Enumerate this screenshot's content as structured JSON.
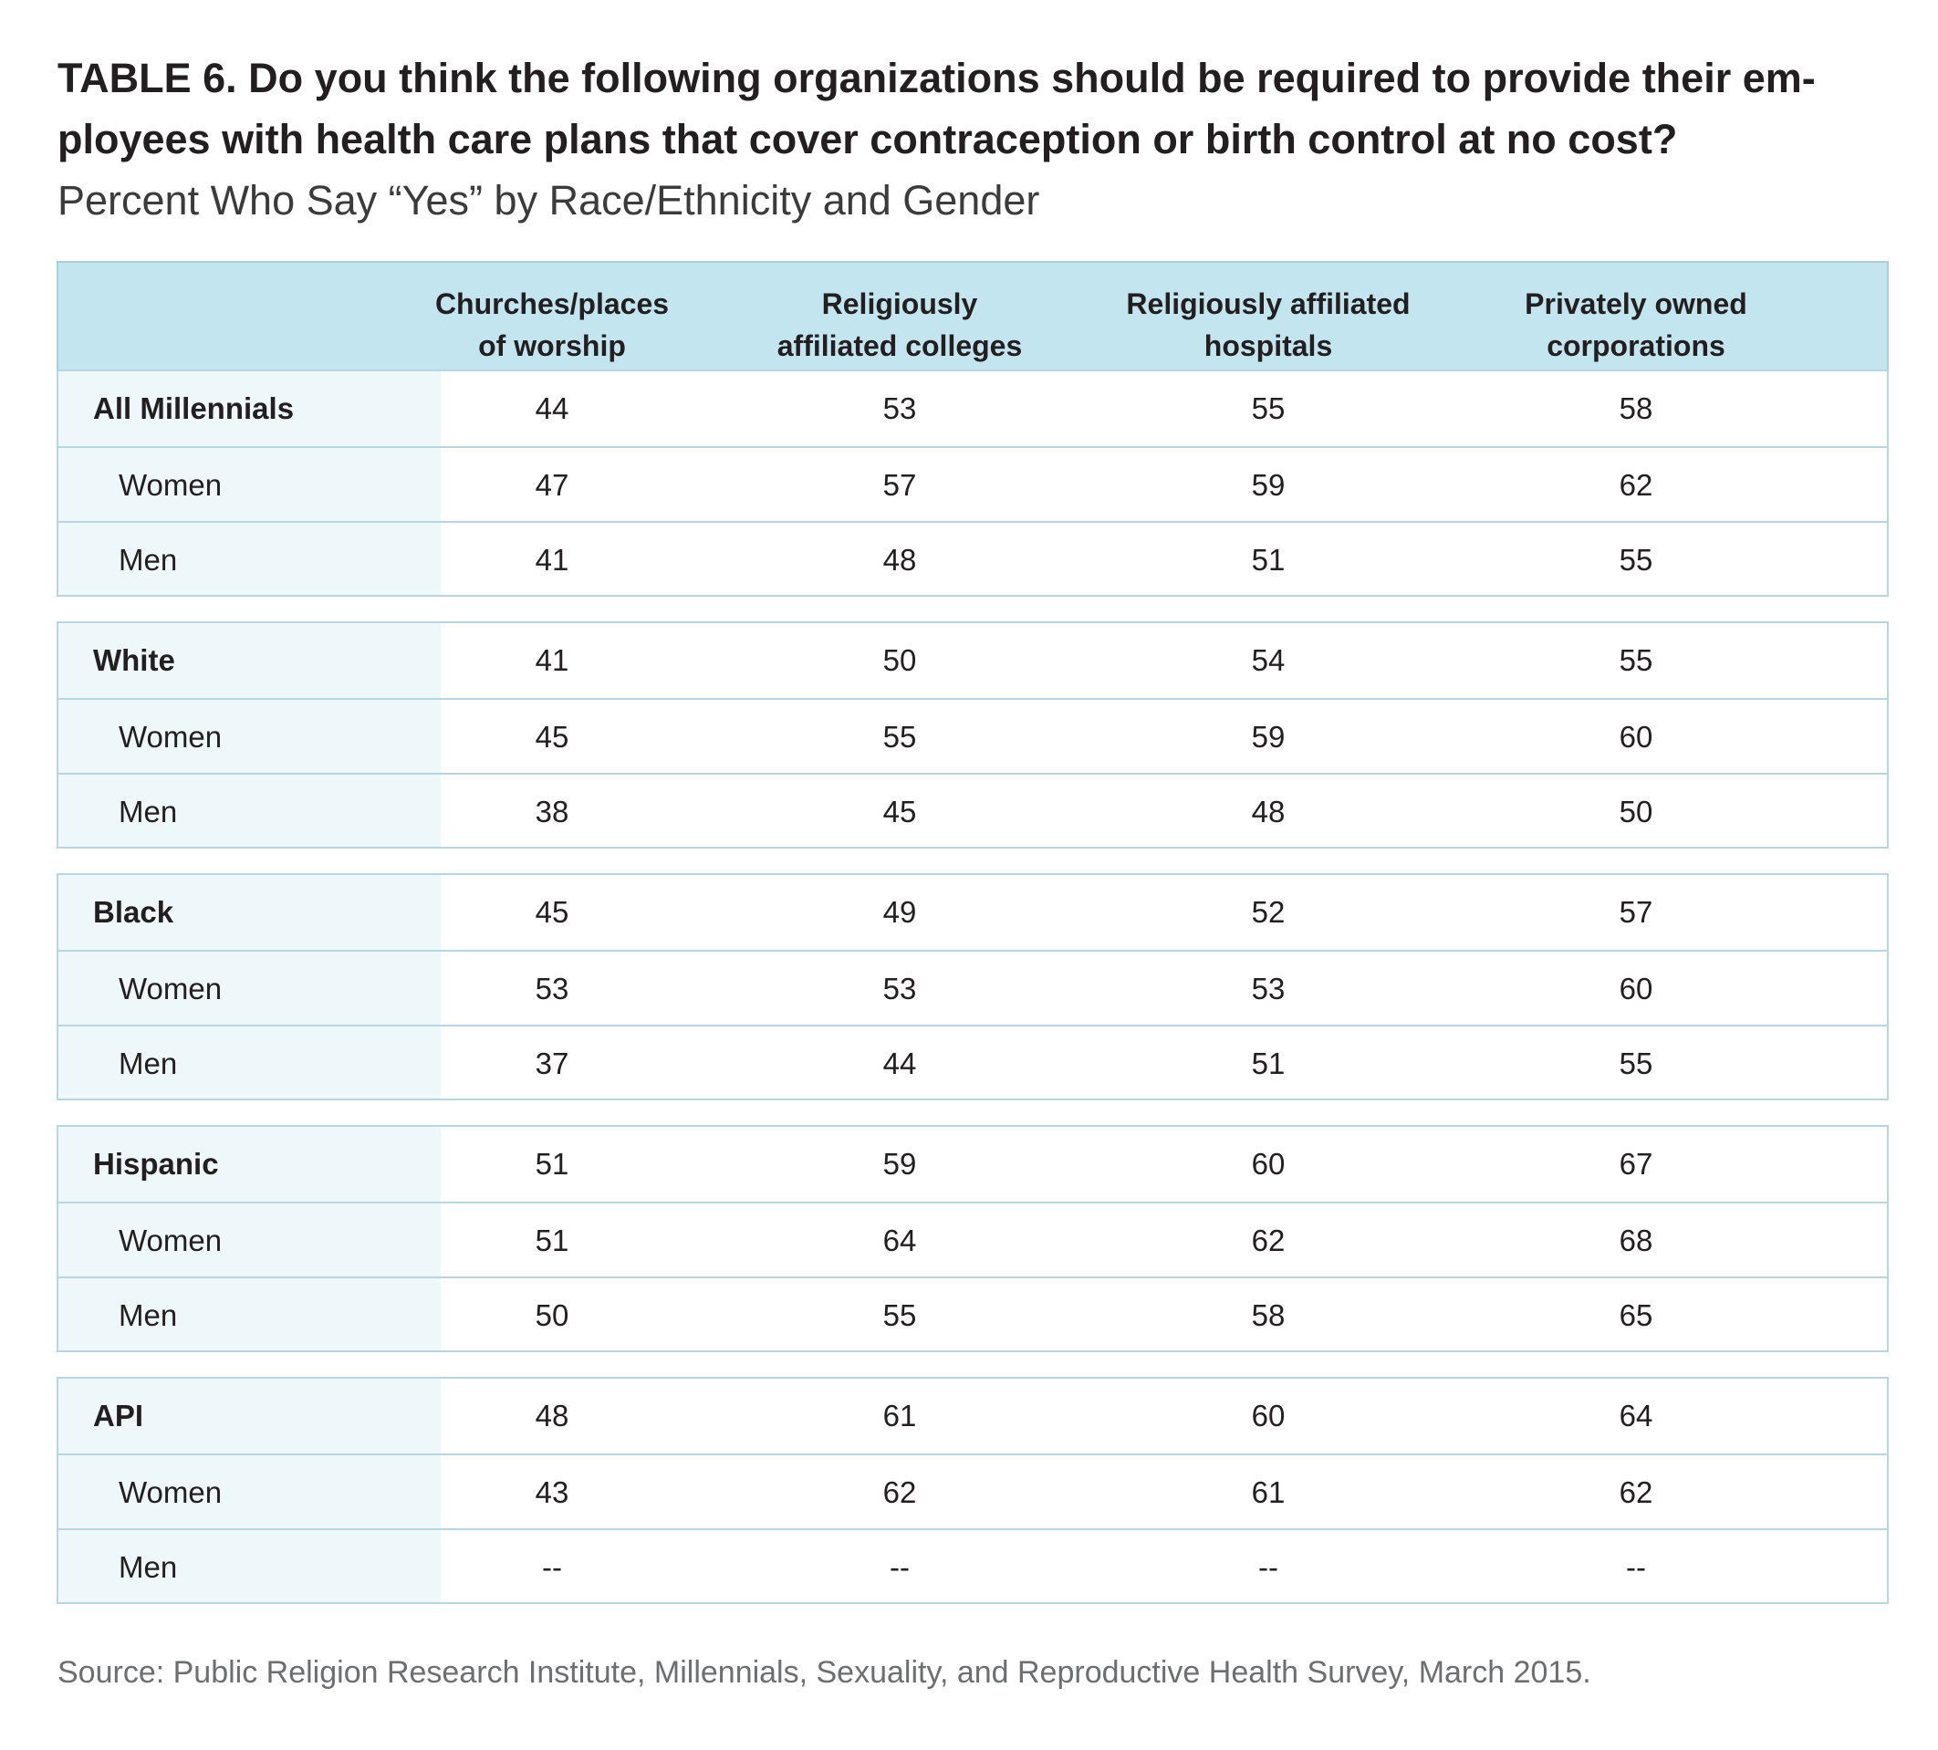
{
  "title": "TABLE 6. Do you think the following organizations should be required to provide their em-ployees with health care plans that cover contraception or birth control at no cost?",
  "title_lines": [
    "TABLE 6. Do you think the following organizations should be required to provide their em-",
    "ployees with health care plans that cover contraception or birth control at no cost?"
  ],
  "subtitle": "Percent Who Say “Yes” by Race/Ethnicity and Gender",
  "source": "Source: Public Religion Research Institute, Millennials, Sexuality, and Reproductive Health Survey, March 2015.",
  "colors": {
    "header_bg": "#c3e5ef",
    "label_column_bg": "#eef7fa",
    "border": "#b9d6e0",
    "text": "#231f20",
    "source_text": "#6d6e70"
  },
  "chart_data": {
    "type": "table",
    "columns": [
      {
        "lines": [
          "Churches/places",
          "of worship"
        ],
        "label": "Churches/places of worship"
      },
      {
        "lines": [
          "Religiously",
          "affiliated colleges"
        ],
        "label": "Religiously affiliated colleges"
      },
      {
        "lines": [
          "Religiously affiliated",
          "hospitals"
        ],
        "label": "Religiously affiliated hospitals"
      },
      {
        "lines": [
          "Privately owned",
          "corporations"
        ],
        "label": "Privately owned corporations"
      }
    ],
    "groups": [
      {
        "rows": [
          {
            "label": "All Millennials",
            "level": "main",
            "values": [
              "44",
              "53",
              "55",
              "58"
            ]
          },
          {
            "label": "Women",
            "level": "sub",
            "values": [
              "47",
              "57",
              "59",
              "62"
            ]
          },
          {
            "label": "Men",
            "level": "sub",
            "values": [
              "41",
              "48",
              "51",
              "55"
            ]
          }
        ]
      },
      {
        "rows": [
          {
            "label": "White",
            "level": "main",
            "values": [
              "41",
              "50",
              "54",
              "55"
            ]
          },
          {
            "label": "Women",
            "level": "sub",
            "values": [
              "45",
              "55",
              "59",
              "60"
            ]
          },
          {
            "label": "Men",
            "level": "sub",
            "values": [
              "38",
              "45",
              "48",
              "50"
            ]
          }
        ]
      },
      {
        "rows": [
          {
            "label": "Black",
            "level": "main",
            "values": [
              "45",
              "49",
              "52",
              "57"
            ]
          },
          {
            "label": "Women",
            "level": "sub",
            "values": [
              "53",
              "53",
              "53",
              "60"
            ]
          },
          {
            "label": "Men",
            "level": "sub",
            "values": [
              "37",
              "44",
              "51",
              "55"
            ]
          }
        ]
      },
      {
        "rows": [
          {
            "label": "Hispanic",
            "level": "main",
            "values": [
              "51",
              "59",
              "60",
              "67"
            ]
          },
          {
            "label": "Women",
            "level": "sub",
            "values": [
              "51",
              "64",
              "62",
              "68"
            ]
          },
          {
            "label": "Men",
            "level": "sub",
            "values": [
              "50",
              "55",
              "58",
              "65"
            ]
          }
        ]
      },
      {
        "rows": [
          {
            "label": "API",
            "level": "main",
            "values": [
              "48",
              "61",
              "60",
              "64"
            ]
          },
          {
            "label": "Women",
            "level": "sub",
            "values": [
              "43",
              "62",
              "61",
              "62"
            ]
          },
          {
            "label": "Men",
            "level": "sub",
            "values": [
              "--",
              "--",
              "--",
              "--"
            ]
          }
        ]
      }
    ]
  }
}
